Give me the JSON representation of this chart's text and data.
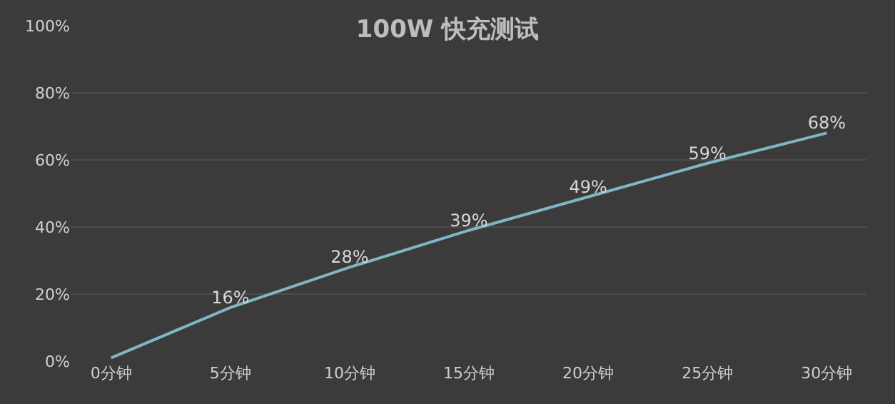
{
  "chart_data": {
    "type": "line",
    "title": "100W 快充测试",
    "categories": [
      "0分钟",
      "5分钟",
      "10分钟",
      "15分钟",
      "20分钟",
      "25分钟",
      "30分钟"
    ],
    "series": [
      {
        "color": "#7fb6c6",
        "values": [
          1,
          16,
          28,
          39,
          49,
          59,
          68
        ],
        "value_labels": [
          null,
          "16%",
          "28%",
          "39%",
          "49%",
          "59%",
          "68%"
        ]
      }
    ],
    "ylim": [
      0,
      100
    ],
    "yticks": [
      {
        "value": 0,
        "label": "0%"
      },
      {
        "value": 20,
        "label": "20%"
      },
      {
        "value": 40,
        "label": "40%"
      },
      {
        "value": 60,
        "label": "60%"
      },
      {
        "value": 80,
        "label": "80%"
      },
      {
        "value": 100,
        "label": "100%"
      }
    ],
    "grid": "y",
    "legend": false,
    "marker": "none",
    "line_style": "solid"
  }
}
